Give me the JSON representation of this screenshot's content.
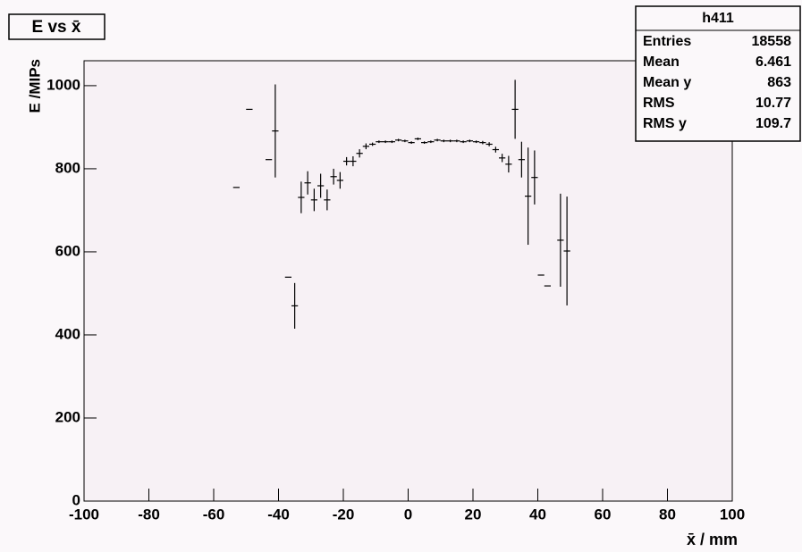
{
  "chart_data": {
    "type": "profile",
    "title": "E vs x̄",
    "x_label": "x̄ / mm",
    "y_label": "E /MIPs",
    "xlim": [
      -100,
      100
    ],
    "ylim": [
      0,
      1060
    ],
    "xticks": [
      -100,
      -80,
      -60,
      -40,
      -20,
      0,
      20,
      40,
      60,
      80,
      100
    ],
    "yticks": [
      0,
      200,
      400,
      600,
      800,
      1000
    ],
    "color": "#000000",
    "x": [
      -53,
      -49,
      -43,
      -41,
      -37,
      -35,
      -33,
      -31,
      -29,
      -27,
      -25,
      -23,
      -21,
      -19,
      -17,
      -15,
      -13,
      -11,
      -9,
      -7,
      -5,
      -3,
      -1,
      1,
      3,
      5,
      7,
      9,
      11,
      13,
      15,
      17,
      19,
      21,
      23,
      25,
      27,
      29,
      31,
      33,
      35,
      37,
      39,
      41,
      43,
      47,
      49
    ],
    "values": [
      755,
      943,
      822,
      891,
      539,
      470,
      731,
      766,
      725,
      759,
      725,
      781,
      772,
      818,
      818,
      837,
      854,
      859,
      865,
      865,
      865,
      869,
      867,
      863,
      872,
      863,
      865,
      869,
      867,
      867,
      867,
      865,
      867,
      865,
      863,
      859,
      846,
      826,
      811,
      943,
      822,
      734,
      779,
      544,
      518,
      628,
      602
    ],
    "errors": [
      0,
      0,
      0,
      112,
      0,
      55,
      38,
      28,
      27,
      29,
      25,
      19,
      20,
      10,
      12,
      10,
      7,
      4,
      3,
      3,
      3,
      3,
      3,
      3,
      3,
      3,
      3,
      3,
      3,
      3,
      3,
      3,
      3,
      3,
      4,
      5,
      7,
      10,
      20,
      71,
      43,
      117,
      65,
      0,
      0,
      112,
      131
    ],
    "stats": {
      "title": "h411",
      "rows": [
        [
          "Entries",
          "18558"
        ],
        [
          "Mean",
          "6.461"
        ],
        [
          "Mean y",
          "863"
        ],
        [
          "RMS",
          "10.77"
        ],
        [
          "RMS y",
          "109.7"
        ]
      ]
    }
  }
}
